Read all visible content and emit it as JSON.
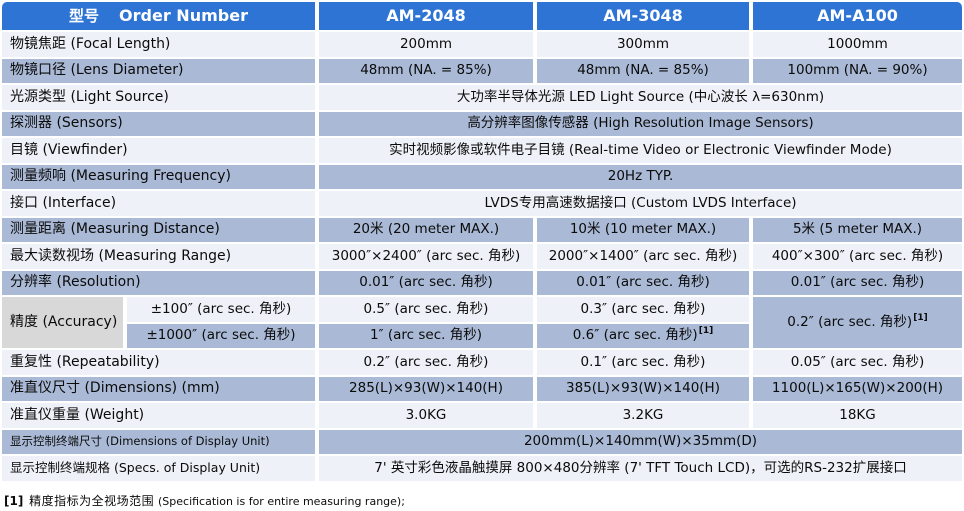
{
  "table": {
    "header": {
      "model_cn": "型号",
      "model_en": "Order Number",
      "columns": [
        "AM-2048",
        "AM-3048",
        "AM-A100"
      ]
    },
    "rows_top": [
      {
        "label": "物镜焦距 (Focal Length)",
        "values": [
          "200mm",
          "300mm",
          "1000mm"
        ]
      },
      {
        "label": "物镜口径 (Lens Diameter)",
        "values": [
          "48mm (NA. = 85%)",
          "48mm (NA. = 85%)",
          "100mm (NA. = 90%)"
        ]
      },
      {
        "label": "光源类型 (Light Source)",
        "merged": "大功率半导体光源 LED Light Source (中心波长 λ=630nm)"
      },
      {
        "label": "探测器 (Sensors)",
        "merged": "高分辨率图像传感器 (High Resolution Image Sensors)"
      },
      {
        "label": "目镜 (Viewfinder)",
        "merged": "实时视频影像或软件电子目镜 (Real-time Video or Electronic Viewfinder Mode)"
      },
      {
        "label": "测量频响 (Measuring Frequency)",
        "merged": "20Hz TYP."
      },
      {
        "label": "接口 (Interface)",
        "merged": "LVDS专用高速数据接口 (Custom LVDS Interface)"
      },
      {
        "label": "测量距离 (Measuring Distance)",
        "values": [
          "20米 (20 meter MAX.)",
          "10米 (10 meter MAX.)",
          "5米 (5 meter MAX.)"
        ]
      },
      {
        "label": "最大读数视场 (Measuring Range)",
        "values": [
          "3000″×2400″ (arc sec. 角秒)",
          "2000″×1400″ (arc sec. 角秒)",
          "400″×300″ (arc sec. 角秒)"
        ]
      },
      {
        "label": "分辨率 (Resolution)",
        "values": [
          "0.01″ (arc sec. 角秒)",
          "0.01″ (arc sec. 角秒)",
          "0.01″ (arc sec. 角秒)"
        ]
      }
    ],
    "accuracy": {
      "label": "精度 (Accuracy)",
      "sub_rows": [
        {
          "range": "±100″ (arc sec. 角秒)",
          "am2048": "0.5″ (arc sec. 角秒)",
          "am3048": "0.3″ (arc sec. 角秒)"
        },
        {
          "range": "±1000″ (arc sec. 角秒)",
          "am2048": "1″ (arc sec. 角秒)",
          "am3048": "0.6″ (arc sec. 角秒)",
          "am3048_sup": "[1]"
        }
      ],
      "am_a100_value": "0.2″ (arc sec. 角秒)",
      "am_a100_sup": "[1]"
    },
    "rows_bottom": [
      {
        "label": "重复性 (Repeatability)",
        "values": [
          "0.2″ (arc sec. 角秒)",
          "0.1″ (arc sec. 角秒)",
          "0.05″ (arc sec. 角秒)"
        ]
      },
      {
        "label": "准直仪尺寸 (Dimensions) (mm)",
        "values": [
          "285(L)×93(W)×140(H)",
          "385(L)×93(W)×140(H)",
          "1100(L)×165(W)×200(H)"
        ]
      },
      {
        "label": "准直仪重量 (Weight)",
        "values": [
          "3.0KG",
          "3.2KG",
          "18KG"
        ]
      },
      {
        "label": "显示控制终端尺寸 (Dimensions of Display Unit)",
        "merged": "200mm(L)×140mm(W)×35mm(D)"
      },
      {
        "label": "显示控制终端规格 (Specs. of Display Unit)",
        "merged": "7' 英寸彩色液晶触摸屏 800×480分辨率 (7' TFT Touch LCD)，可选的RS-232扩展接口"
      }
    ],
    "footnote": {
      "marker": "[1]",
      "text_cn": "精度指标为全视场范围",
      "text_en": "(Specification is for entire measuring range);"
    }
  },
  "colors": {
    "header_blue": "#2e74d4",
    "row_light": "#eef1f7",
    "row_dark": "#aabad6",
    "accuracy_gray": "#d8d8d8"
  }
}
